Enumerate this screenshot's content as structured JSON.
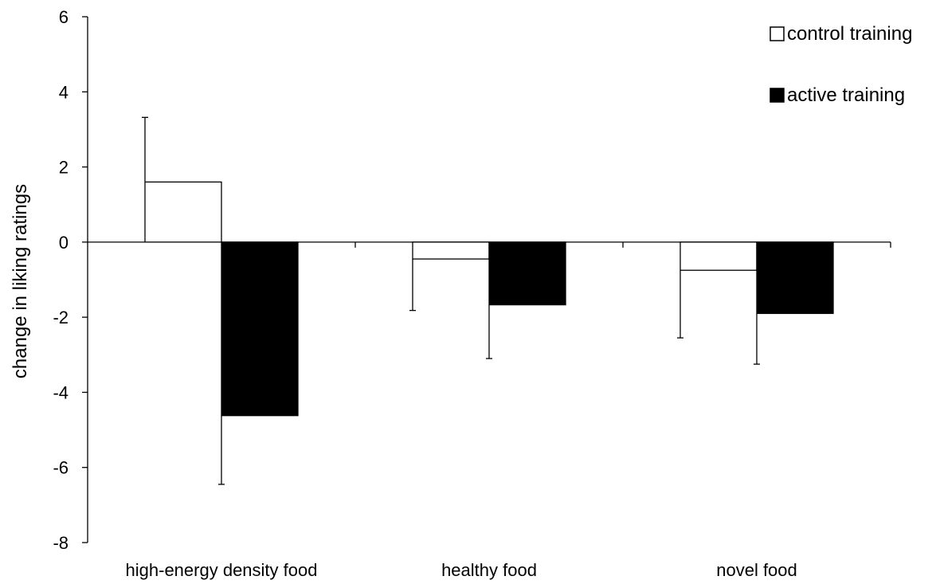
{
  "chart_data": {
    "type": "bar",
    "title": "",
    "xlabel": "",
    "ylabel": "change in liking ratings",
    "categories": [
      "high-energy density food",
      "healthy food",
      "novel food"
    ],
    "series": [
      {
        "name": "control training",
        "values": [
          1.6,
          -0.45,
          -0.75
        ],
        "errors": [
          1.72,
          1.37,
          1.8
        ],
        "color": "#ffffff",
        "edge": "#000000"
      },
      {
        "name": "active training",
        "values": [
          -4.62,
          -1.67,
          -1.9
        ],
        "errors": [
          1.83,
          1.43,
          1.35
        ],
        "color": "#000000",
        "edge": "#000000"
      }
    ],
    "ylim": [
      -8,
      6
    ],
    "yticks": [
      -8,
      -6,
      -4,
      -2,
      0,
      2,
      4,
      6
    ],
    "grid": false,
    "legend_position": "top-right"
  }
}
